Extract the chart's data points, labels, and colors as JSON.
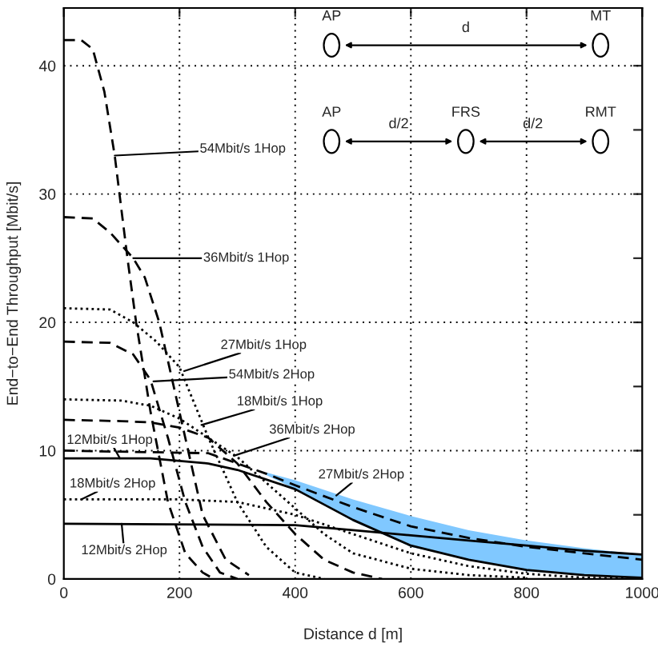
{
  "chart_data": {
    "type": "line",
    "xlabel": "Distance d [m]",
    "ylabel": "End−to−End Throughput [Mbit/s]",
    "xlim": [
      0,
      1000
    ],
    "ylim": [
      0,
      44.5
    ],
    "xticks": [
      0,
      200,
      400,
      600,
      800,
      1000
    ],
    "yticks": [
      0,
      {
        "value": 5,
        "label": null
      },
      10,
      {
        "value": 15,
        "label": null
      },
      20,
      {
        "value": 25,
        "label": null
      },
      30,
      {
        "value": 35,
        "label": null
      },
      40
    ],
    "grid": true,
    "legend": false,
    "series": [
      {
        "color": "#000000",
        "line_style": "dashed",
        "x": [
          0,
          30,
          50,
          70,
          88,
          110,
          125,
          150,
          180,
          210,
          240,
          260
        ],
        "values": [
          42,
          42,
          41.3,
          38,
          33,
          25,
          20,
          13,
          6,
          2,
          0.5,
          0
        ]
      },
      {
        "color": "#000000",
        "line_style": "dashed",
        "x": [
          0,
          50,
          80,
          100,
          120,
          140,
          165,
          200,
          240,
          280,
          320
        ],
        "values": [
          28.2,
          28.1,
          27,
          26,
          25,
          23.5,
          20,
          13,
          5,
          1.5,
          0.3
        ]
      },
      {
        "color": "#000000",
        "line_style": "dotted",
        "x": [
          0,
          80,
          120,
          160,
          200,
          250,
          300,
          350,
          400,
          450
        ],
        "values": [
          21.1,
          21,
          20,
          18.5,
          16.5,
          11,
          6,
          2.5,
          0.5,
          0
        ]
      },
      {
        "color": "#000000",
        "line_style": "dashed",
        "x": [
          0,
          80,
          120,
          150,
          180,
          210,
          240,
          270,
          300
        ],
        "values": [
          18.5,
          18.4,
          17.5,
          15.5,
          11,
          6,
          2.5,
          0.5,
          0
        ]
      },
      {
        "color": "#000000",
        "line_style": "dotted",
        "x": [
          0,
          100,
          150,
          200,
          250,
          300,
          350,
          400,
          450,
          500,
          600,
          700,
          800
        ],
        "values": [
          14,
          13.9,
          13.5,
          12.5,
          11,
          9.5,
          7.5,
          5.5,
          3.5,
          2,
          0.8,
          0.3,
          0.1
        ]
      },
      {
        "color": "#000000",
        "line_style": "dashed",
        "x": [
          0,
          100,
          150,
          200,
          250,
          300,
          350,
          400,
          450,
          500,
          550
        ],
        "values": [
          12.4,
          12.3,
          12.2,
          11.8,
          11,
          9,
          6,
          3.5,
          1.5,
          0.5,
          0
        ]
      },
      {
        "color": "#000000",
        "line_style": "solid",
        "x": [
          0,
          150,
          250,
          300,
          400,
          500,
          600,
          700,
          800,
          900,
          1000
        ],
        "values": [
          9.4,
          9.4,
          9,
          8.5,
          7,
          4.6,
          2.6,
          1.5,
          0.7,
          0.3,
          0.1
        ]
      },
      {
        "color": "#000000",
        "line_style": "dotted",
        "x": [
          0,
          200,
          300,
          400,
          500,
          600,
          700,
          800,
          900,
          1000
        ],
        "values": [
          6.2,
          6.2,
          6,
          5,
          3.5,
          2,
          1,
          0.4,
          0.1,
          0
        ]
      },
      {
        "color": "#000000",
        "line_style": "solid",
        "x": [
          0,
          400,
          500,
          600,
          700,
          800,
          900,
          1000
        ],
        "values": [
          4.3,
          4.2,
          3.8,
          3.4,
          3.0,
          2.6,
          2.2,
          1.9
        ]
      },
      {
        "color": "#000000",
        "line_style": "dashed",
        "x": [
          0,
          250,
          350,
          400,
          500,
          600,
          700,
          800,
          900,
          1000
        ],
        "values": [
          10,
          9.8,
          8.2,
          7.3,
          5.6,
          4.1,
          3.2,
          2.5,
          2.0,
          1.5
        ],
        "lower": [
          null,
          null,
          8.1,
          7.0,
          4.5,
          2.5,
          1.5,
          0.6,
          0.3,
          0.1
        ],
        "upper": [
          null,
          null,
          8.3,
          7.7,
          6.2,
          4.9,
          3.8,
          3.0,
          2.4,
          1.9
        ]
      }
    ],
    "annotations": [
      {
        "text": "54Mbit/s 1Hop",
        "x": 88,
        "y": 33
      },
      {
        "text": "36Mbit/s 1Hop",
        "x": 120,
        "y": 25
      },
      {
        "text": "27Mbit/s 1Hop",
        "x": 208,
        "y": 16.2
      },
      {
        "text": "54Mbit/s 2Hop",
        "x": 155,
        "y": 15.4
      },
      {
        "text": "18Mbit/s 1Hop",
        "x": 238,
        "y": 12
      },
      {
        "text": "36Mbit/s 2Hop",
        "x": 294,
        "y": 9.6
      },
      {
        "text": "27Mbit/s 2Hop",
        "x": 471,
        "y": 6.5
      },
      {
        "text": "12Mbit/s 1Hop",
        "x": 97,
        "y": 9.4
      },
      {
        "text": "18Mbit/s 2Hop",
        "x": 30,
        "y": 6.2
      },
      {
        "text": "12Mbit/s 2Hop",
        "x": 100,
        "y": 4.3
      },
      "AP",
      "d",
      "MT",
      "AP",
      "d/2",
      "FRS",
      "d/2",
      "RMT"
    ]
  }
}
